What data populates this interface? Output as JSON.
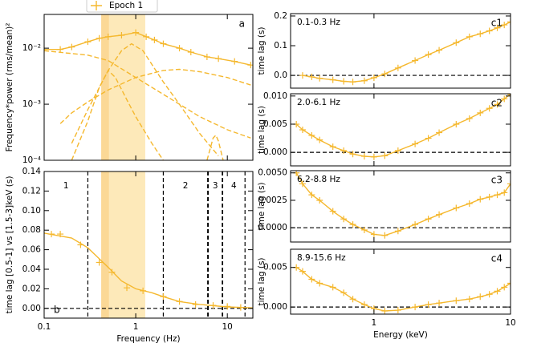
{
  "chart_data": [
    {
      "type": "line",
      "label": "a",
      "label_corner": "upper right",
      "ylabel": "Frequency*power (rms/mean)²",
      "xlog": true,
      "ylog": true,
      "xlim": [
        0.1,
        19
      ],
      "ylim": [
        0.0001,
        0.04
      ],
      "xticks": [
        0.1,
        1,
        10
      ],
      "xtick_labels": false,
      "yticks": [
        {
          "value": 0.0001,
          "label": "10⁻⁴"
        },
        {
          "value": 0.001,
          "label": "10⁻³"
        },
        {
          "value": 0.01,
          "label": "10⁻²"
        }
      ],
      "legend": "top",
      "bands": [
        {
          "range": [
            0.42,
            1.27
          ],
          "color": "#fde9b9"
        },
        {
          "range": [
            0.42,
            0.51
          ],
          "color": "#fbd896"
        }
      ],
      "series": [
        {
          "name": "Epoch 1",
          "color": "#f5b82e",
          "markers": true,
          "x": [
            0.1,
            0.15,
            0.2,
            0.3,
            0.4,
            0.5,
            0.7,
            1.0,
            1.3,
            1.6,
            2,
            3,
            4,
            6,
            8,
            12,
            18
          ],
          "values": [
            0.0095,
            0.0095,
            0.0105,
            0.013,
            0.015,
            0.016,
            0.017,
            0.019,
            0.016,
            0.014,
            0.012,
            0.01,
            0.0085,
            0.007,
            0.0065,
            0.0058,
            0.005
          ]
        },
        {
          "color": "#f5b82e",
          "dash": true,
          "x": [
            0.15,
            0.2,
            0.3,
            0.5,
            1,
            2,
            3,
            5,
            10,
            18
          ],
          "values": [
            0.00045,
            0.0007,
            0.0011,
            0.0018,
            0.003,
            0.004,
            0.0042,
            0.0038,
            0.003,
            0.0022
          ]
        },
        {
          "color": "#f5b82e",
          "dash": true,
          "x": [
            0.1,
            0.3,
            0.5,
            1,
            2,
            5,
            10,
            18
          ],
          "values": [
            0.009,
            0.0075,
            0.006,
            0.003,
            0.0015,
            0.0006,
            0.00035,
            0.00025
          ]
        },
        {
          "color": "#f5b82e",
          "dash": true,
          "x": [
            0.2,
            0.3,
            0.4,
            0.5,
            0.6,
            0.8,
            1,
            1.5,
            2
          ],
          "values": [
            0.0001,
            0.0005,
            0.002,
            0.004,
            0.003,
            0.0012,
            0.0006,
            0.0002,
            0.0001
          ]
        },
        {
          "color": "#f5b82e",
          "dash": true,
          "x": [
            0.2,
            0.3,
            0.5,
            0.7,
            0.9,
            1.2,
            2,
            3,
            5,
            8
          ],
          "values": [
            0.0002,
            0.0008,
            0.004,
            0.009,
            0.012,
            0.009,
            0.0025,
            0.001,
            0.0003,
            0.00012
          ]
        },
        {
          "color": "#f5b82e",
          "dash": true,
          "x": [
            6,
            7,
            7.5,
            8,
            9
          ],
          "values": [
            0.0001,
            0.00025,
            0.00028,
            0.00022,
            0.0001
          ]
        }
      ]
    },
    {
      "type": "line",
      "label": "b",
      "label_corner": "lower left",
      "xlabel": "Frequency (Hz)",
      "ylabel": "time lag [0.5-1] vs [1.5-3]keV (s)",
      "xlog": true,
      "xlim": [
        0.1,
        19
      ],
      "ylim": [
        -0.01,
        0.14
      ],
      "xticks": [
        0.1,
        1,
        10
      ],
      "xtick_labels": true,
      "yticks": [
        {
          "value": 0,
          "label": "0.00"
        },
        {
          "value": 0.02,
          "label": "0.02"
        },
        {
          "value": 0.04,
          "label": "0.04"
        },
        {
          "value": 0.06,
          "label": "0.06"
        },
        {
          "value": 0.08,
          "label": "0.08"
        },
        {
          "value": 0.1,
          "label": "0.10"
        },
        {
          "value": 0.12,
          "label": "0.12"
        },
        {
          "value": 0.14,
          "label": "0.14"
        }
      ],
      "zero_line": true,
      "bands": [
        {
          "range": [
            0.42,
            1.27
          ],
          "color": "#fde9b9"
        },
        {
          "range": [
            0.42,
            0.51
          ],
          "color": "#fbd896"
        }
      ],
      "regions": [
        {
          "label": "1",
          "range": [
            0.1,
            0.3
          ]
        },
        {
          "label": "2",
          "range": [
            2.0,
            6.1
          ]
        },
        {
          "label": "3",
          "range": [
            6.2,
            8.8
          ]
        },
        {
          "label": "4",
          "range": [
            8.9,
            15.6
          ]
        }
      ],
      "series": [
        {
          "color": "#f5b82e",
          "markers": true,
          "nolink": true,
          "x": [
            0.12,
            0.15,
            0.25,
            0.4,
            0.55,
            0.8,
            1.2,
            2,
            3,
            4.5,
            7,
            10,
            14
          ],
          "values": [
            0.076,
            0.076,
            0.065,
            0.047,
            0.037,
            0.021,
            0.018,
            0.012,
            0.007,
            0.004,
            0.003,
            0.002,
            0.001
          ]
        },
        {
          "color": "#f5b82e",
          "x": [
            0.1,
            0.2,
            0.3,
            0.5,
            0.7,
            1,
            1.5,
            2,
            3,
            5,
            10,
            19
          ],
          "values": [
            0.077,
            0.072,
            0.062,
            0.042,
            0.028,
            0.02,
            0.016,
            0.012,
            0.007,
            0.004,
            0.0015,
            0.0005
          ]
        }
      ]
    },
    {
      "type": "line",
      "label": "c1",
      "annotation": "0.1-0.3 Hz",
      "ylabel": "time lag (s)",
      "xlog": true,
      "xlim": [
        0.245,
        10
      ],
      "ylim": [
        -0.043,
        0.208
      ],
      "xticks": [
        1,
        10
      ],
      "xtick_labels": false,
      "zero_line": true,
      "yticks": [
        {
          "value": 0,
          "label": "0.0"
        },
        {
          "value": 0.1,
          "label": "0.1"
        },
        {
          "value": 0.2,
          "label": "0.2"
        }
      ],
      "series": [
        {
          "color": "#f5b82e",
          "markers": true,
          "x": [
            0.3,
            0.35,
            0.4,
            0.5,
            0.6,
            0.7,
            0.85,
            1,
            1.2,
            1.5,
            2,
            2.5,
            3,
            4,
            5,
            6,
            7,
            8,
            9,
            10
          ],
          "values": [
            0.0,
            -0.005,
            -0.01,
            -0.015,
            -0.02,
            -0.022,
            -0.018,
            -0.008,
            0.005,
            0.025,
            0.05,
            0.07,
            0.085,
            0.11,
            0.13,
            0.14,
            0.15,
            0.16,
            0.17,
            0.18
          ]
        }
      ]
    },
    {
      "type": "line",
      "label": "c2",
      "annotation": "2.0-6.1 Hz",
      "ylabel": "time lag (s)",
      "xlog": true,
      "xlim": [
        0.245,
        10
      ],
      "ylim": [
        -0.0024,
        0.0104
      ],
      "xticks": [
        1,
        10
      ],
      "xtick_labels": false,
      "zero_line": true,
      "yticks": [
        {
          "value": 0,
          "label": "0.000"
        },
        {
          "value": 0.005,
          "label": "0.005"
        },
        {
          "value": 0.01,
          "label": "0.010"
        }
      ],
      "series": [
        {
          "color": "#f5b82e",
          "markers": true,
          "x": [
            0.27,
            0.3,
            0.35,
            0.4,
            0.5,
            0.6,
            0.7,
            0.85,
            1,
            1.2,
            1.5,
            2,
            2.5,
            3,
            4,
            5,
            6,
            7,
            8,
            9,
            10
          ],
          "values": [
            0.005,
            0.004,
            0.003,
            0.0022,
            0.001,
            0.0003,
            -0.0003,
            -0.0007,
            -0.0008,
            -0.0006,
            0.0003,
            0.0015,
            0.0025,
            0.0035,
            0.005,
            0.006,
            0.007,
            0.0078,
            0.0085,
            0.0095,
            0.0103
          ]
        }
      ]
    },
    {
      "type": "line",
      "label": "c3",
      "annotation": "6.2-8.8 Hz",
      "ylabel": "time lag (s)",
      "xlog": true,
      "xlim": [
        0.245,
        10
      ],
      "ylim": [
        -0.0013,
        0.0052
      ],
      "xticks": [
        1,
        10
      ],
      "xtick_labels": false,
      "zero_line": true,
      "yticks": [
        {
          "value": 0,
          "label": "0.0000"
        },
        {
          "value": 0.0025,
          "label": "0.0025"
        },
        {
          "value": 0.005,
          "label": "0.0050"
        }
      ],
      "series": [
        {
          "color": "#f5b82e",
          "markers": true,
          "x": [
            0.27,
            0.3,
            0.35,
            0.4,
            0.5,
            0.6,
            0.7,
            0.85,
            1,
            1.2,
            1.5,
            2,
            2.5,
            3,
            4,
            5,
            6,
            7,
            8,
            9,
            10
          ],
          "values": [
            0.005,
            0.004,
            0.003,
            0.0025,
            0.0015,
            0.0008,
            0.0003,
            -0.0002,
            -0.0006,
            -0.0007,
            -0.0003,
            0.0003,
            0.0008,
            0.0012,
            0.0018,
            0.0022,
            0.0026,
            0.0028,
            0.003,
            0.0032,
            0.004
          ]
        }
      ]
    },
    {
      "type": "line",
      "label": "c4",
      "annotation": "8.9-15.6 Hz",
      "ylabel": "time lag (s)",
      "xlabel": "Energy (keV)",
      "xlog": true,
      "xlim": [
        0.245,
        10
      ],
      "ylim": [
        -0.0009,
        0.0073
      ],
      "xticks": [
        1,
        10
      ],
      "xtick_labels": true,
      "zero_line": true,
      "yticks": [
        {
          "value": 0,
          "label": "0.000"
        },
        {
          "value": 0.005,
          "label": "0.005"
        }
      ],
      "series": [
        {
          "color": "#f5b82e",
          "markers": true,
          "x": [
            0.27,
            0.3,
            0.35,
            0.4,
            0.5,
            0.6,
            0.7,
            0.85,
            1,
            1.2,
            1.5,
            2,
            2.5,
            3,
            4,
            5,
            6,
            7,
            8,
            9,
            10
          ],
          "values": [
            0.005,
            0.0045,
            0.0035,
            0.003,
            0.0025,
            0.0018,
            0.001,
            0.0003,
            -0.0002,
            -0.0005,
            -0.0004,
            0,
            0.0003,
            0.0005,
            0.0008,
            0.001,
            0.0013,
            0.0016,
            0.002,
            0.0025,
            0.003
          ]
        }
      ]
    }
  ]
}
